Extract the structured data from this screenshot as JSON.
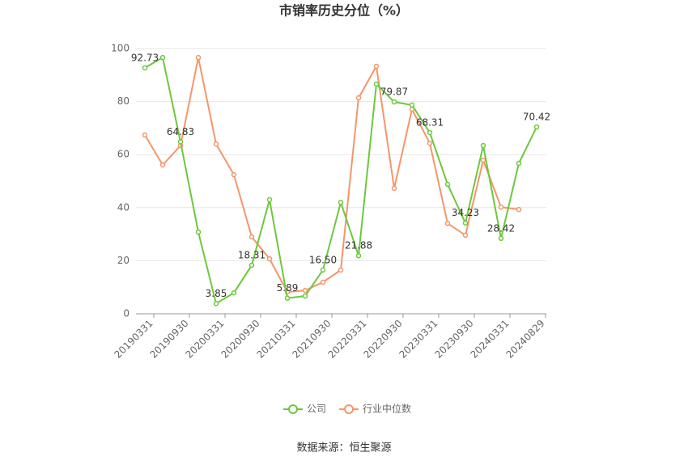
{
  "chart_data": {
    "type": "line",
    "title": "市销率历史分位（%）",
    "categories": [
      "20190331",
      null,
      "20190930",
      null,
      "20200331",
      null,
      "20200930",
      null,
      "20210331",
      null,
      "20210930",
      null,
      "20220331",
      null,
      "20220930",
      null,
      "20230331",
      null,
      "20230930",
      null,
      "20240331",
      null,
      "20240829"
    ],
    "series": [
      {
        "name": "公司",
        "color": "#6cc83c",
        "values": [
          92.73,
          96.6,
          64.83,
          30.8,
          3.85,
          7.9,
          18.31,
          43.0,
          5.89,
          6.7,
          16.5,
          42.0,
          21.88,
          86.6,
          79.87,
          78.7,
          68.31,
          48.8,
          34.23,
          63.4,
          28.42,
          56.7,
          70.42
        ],
        "value_labels": [
          "92.73",
          null,
          "64.83",
          null,
          "3.85",
          null,
          "18.31",
          null,
          "5.89",
          null,
          "16.50",
          null,
          "21.88",
          null,
          "79.87",
          null,
          "68.31",
          null,
          "34.23",
          null,
          "28.42",
          null,
          "70.42"
        ]
      },
      {
        "name": "行业中位数",
        "color": "#f4966a",
        "values": [
          67.4,
          56.1,
          63.4,
          96.6,
          64.0,
          52.4,
          29.0,
          20.7,
          8.2,
          8.8,
          11.9,
          16.5,
          81.4,
          93.3,
          47.3,
          77.1,
          64.3,
          34.1,
          29.6,
          57.9,
          40.2,
          39.3,
          null
        ]
      }
    ],
    "ylim": [
      0,
      100
    ],
    "yticks": [
      0,
      20,
      40,
      60,
      80,
      100
    ],
    "grid": true,
    "legend": "bottom",
    "source": "数据来源：恒生聚源"
  }
}
